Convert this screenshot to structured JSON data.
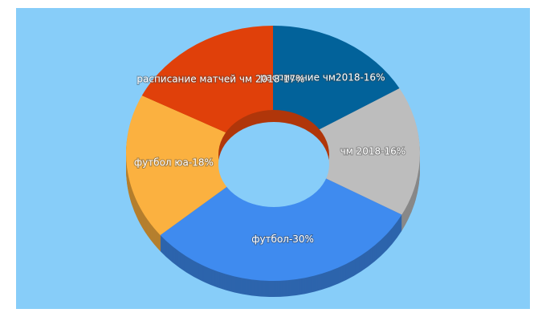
{
  "chart_data": {
    "type": "donut3d",
    "values": [
      16,
      16,
      30,
      18,
      17
    ],
    "value_labels": [
      "расписание чм2018-16%",
      "чм 2018-16%",
      "футбол-30%",
      "футбол юа-18%",
      "расписание матчей чм 2018-17%"
    ],
    "colors": [
      "#02629a",
      "#bdbdbd",
      "#3f8bef",
      "#fbb140",
      "#e0400a"
    ]
  }
}
